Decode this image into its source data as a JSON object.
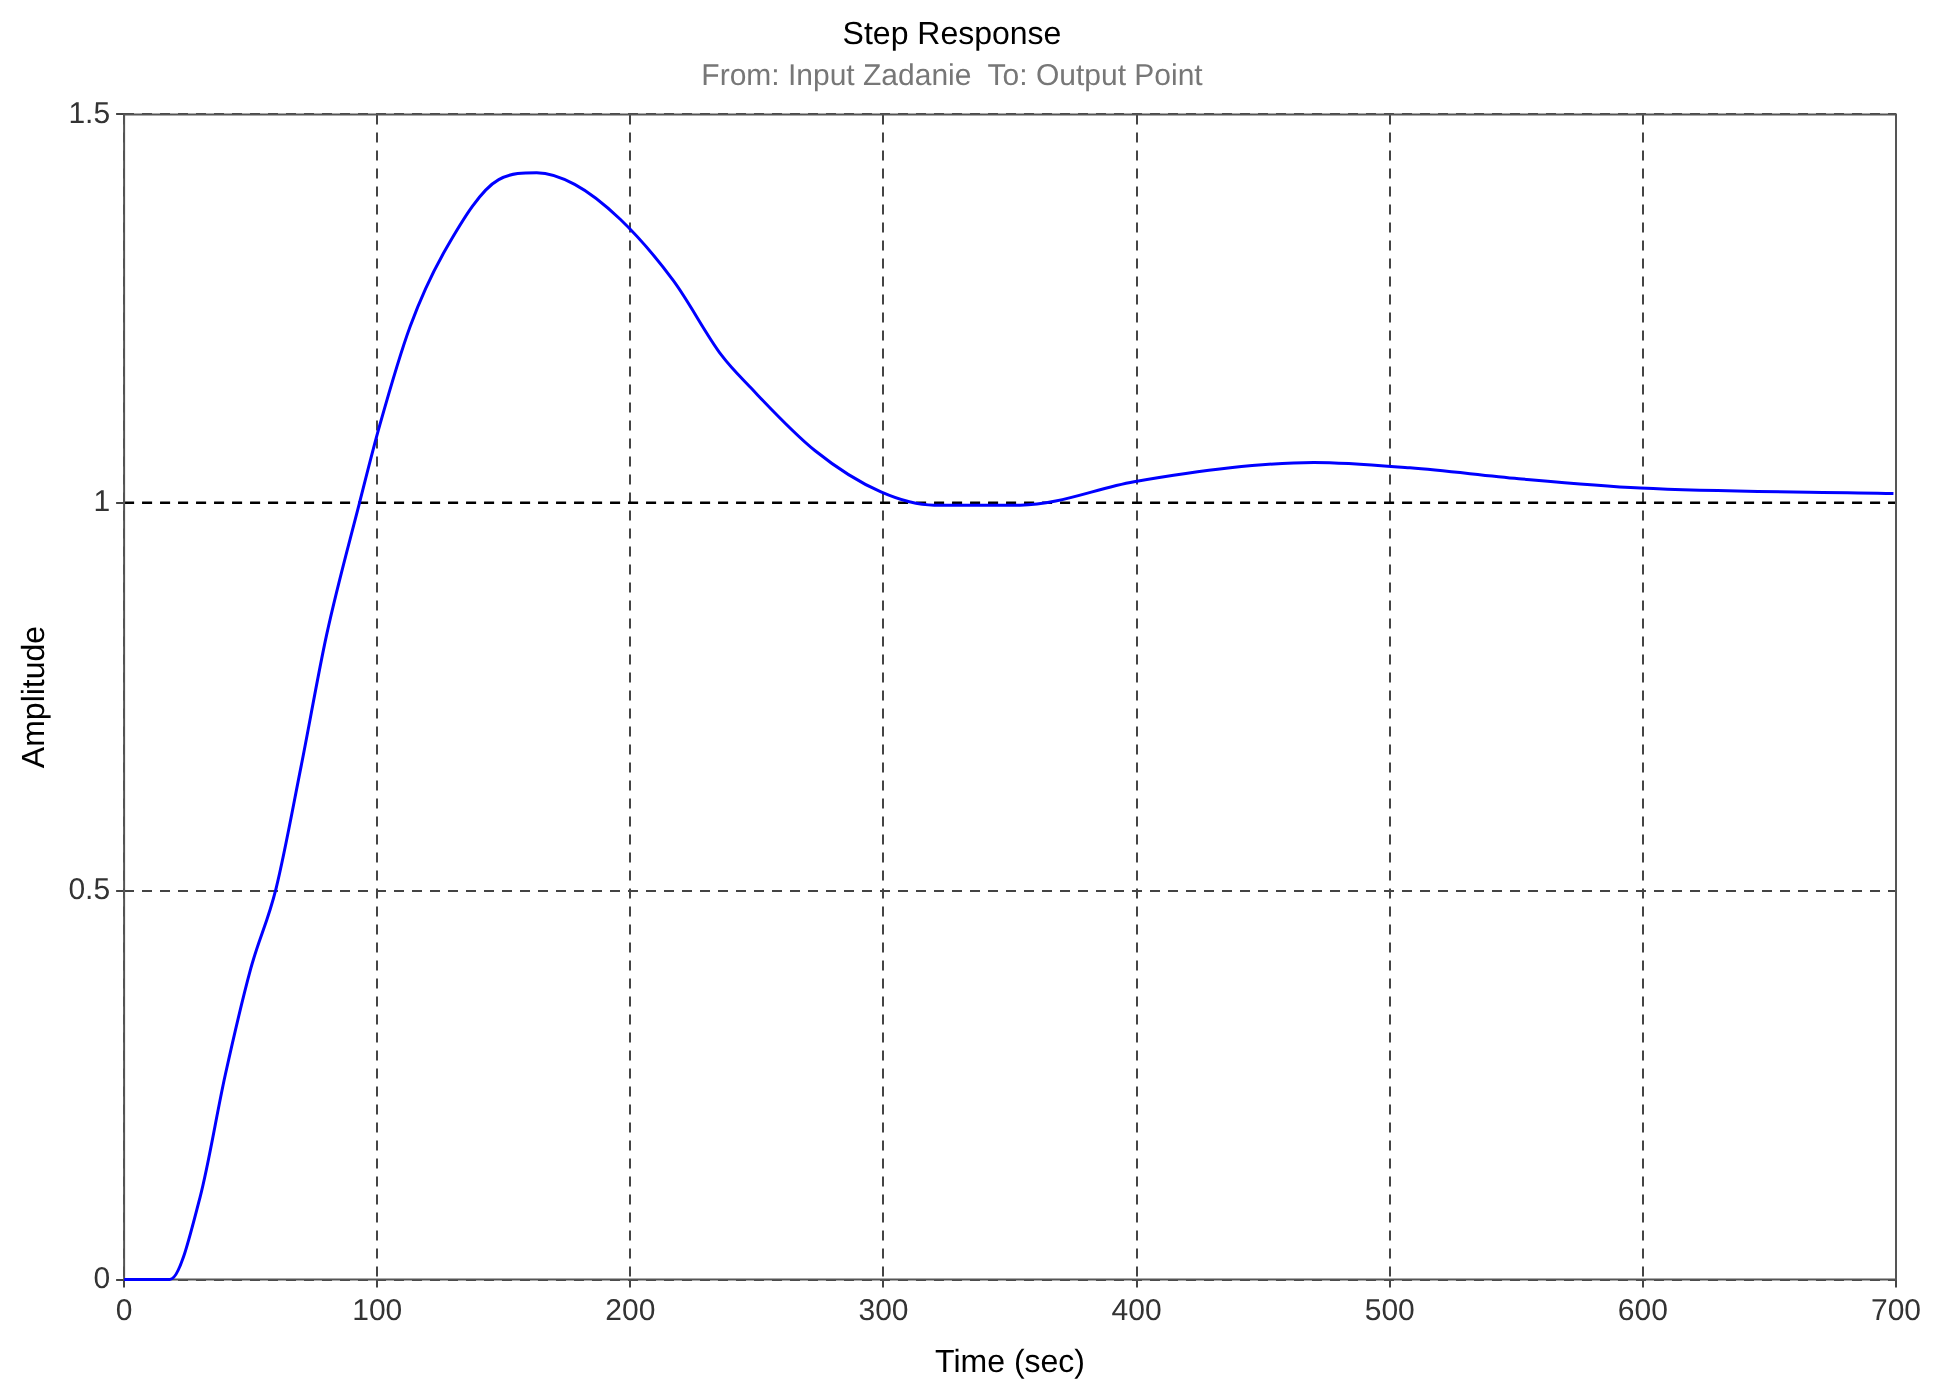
{
  "chart_data": {
    "type": "line",
    "title": "Step Response",
    "subtitle": "From: Input Zadanie  To: Output Point",
    "xlabel": "Time (sec)",
    "ylabel": "Amplitude",
    "series": [
      {
        "color": "#0000ff",
        "x": [
          0,
          18,
          30,
          40,
          50,
          60,
          70,
          80,
          93,
          101,
          113,
          127,
          148,
          163,
          178,
          196,
          217,
          236,
          247,
          273,
          299,
          320,
          354,
          399,
          437,
          470,
          508,
          551,
          599,
          699
        ],
        "values": [
          0,
          0,
          0.106,
          0.264,
          0.4,
          0.503,
          0.662,
          0.83,
          1.0,
          1.1,
          1.227,
          1.326,
          1.416,
          1.425,
          1.41,
          1.365,
          1.286,
          1.19,
          1.15,
          1.067,
          1.014,
          0.997,
          0.997,
          1.027,
          1.045,
          1.052,
          1.045,
          1.031,
          1.019,
          1.012
        ]
      }
    ],
    "xlim": [
      0,
      700
    ],
    "xticks": [
      0,
      100,
      200,
      300,
      400,
      500,
      600,
      700
    ],
    "ylim": [
      0,
      1.5
    ],
    "yticks": [
      0,
      0.5,
      1,
      1.5
    ],
    "ref_lines": [
      {
        "axis": "y",
        "value": 1,
        "color": "#000000",
        "line_style": "dashed"
      }
    ],
    "grid": true,
    "marker": "none",
    "line_style": "solid",
    "legend": false
  }
}
